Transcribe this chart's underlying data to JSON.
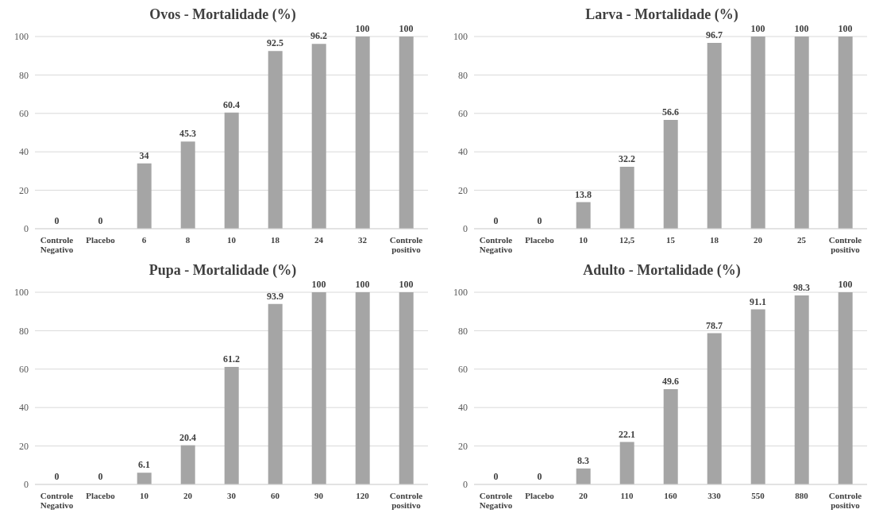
{
  "chart_data": [
    {
      "type": "bar",
      "title": "Ovos - Mortalidade (%)",
      "categories": [
        "Controle Negativo",
        "Placebo",
        "6",
        "8",
        "10",
        "18",
        "24",
        "32",
        "Controle positivo"
      ],
      "values": [
        0,
        0,
        34,
        45.3,
        60.4,
        92.5,
        96.2,
        100,
        100
      ],
      "color": "#a5a5a5",
      "ylim": [
        0,
        100
      ],
      "yticks": [
        0,
        20,
        40,
        60,
        80,
        100
      ],
      "grid": "y",
      "data_labels": true
    },
    {
      "type": "bar",
      "title": "Larva - Mortalidade (%)",
      "categories": [
        "Controle Negativo",
        "Placebo",
        "10",
        "12,5",
        "15",
        "18",
        "20",
        "25",
        "Controle positivo"
      ],
      "values": [
        0,
        0,
        13.8,
        32.2,
        56.6,
        96.7,
        100,
        100,
        100
      ],
      "color": "#a5a5a5",
      "ylim": [
        0,
        100
      ],
      "yticks": [
        0,
        20,
        40,
        60,
        80,
        100
      ],
      "grid": "y",
      "data_labels": true
    },
    {
      "type": "bar",
      "title": "Pupa - Mortalidade (%)",
      "categories": [
        "Controle Negativo",
        "Placebo",
        "10",
        "20",
        "30",
        "60",
        "90",
        "120",
        "Controle positivo"
      ],
      "values": [
        0,
        0,
        6.1,
        20.4,
        61.2,
        93.9,
        100,
        100,
        100
      ],
      "color": "#a5a5a5",
      "ylim": [
        0,
        100
      ],
      "yticks": [
        0,
        20,
        40,
        60,
        80,
        100
      ],
      "grid": "y",
      "data_labels": true
    },
    {
      "type": "bar",
      "title": "Adulto - Mortalidade (%)",
      "categories": [
        "Controle Negativo",
        "Placebo",
        "20",
        "110",
        "160",
        "330",
        "550",
        "880",
        "Controle positivo"
      ],
      "values": [
        0,
        0,
        8.3,
        22.1,
        49.6,
        78.7,
        91.1,
        98.3,
        100
      ],
      "color": "#a5a5a5",
      "ylim": [
        0,
        100
      ],
      "yticks": [
        0,
        20,
        40,
        60,
        80,
        100
      ],
      "grid": "y",
      "data_labels": true
    }
  ]
}
